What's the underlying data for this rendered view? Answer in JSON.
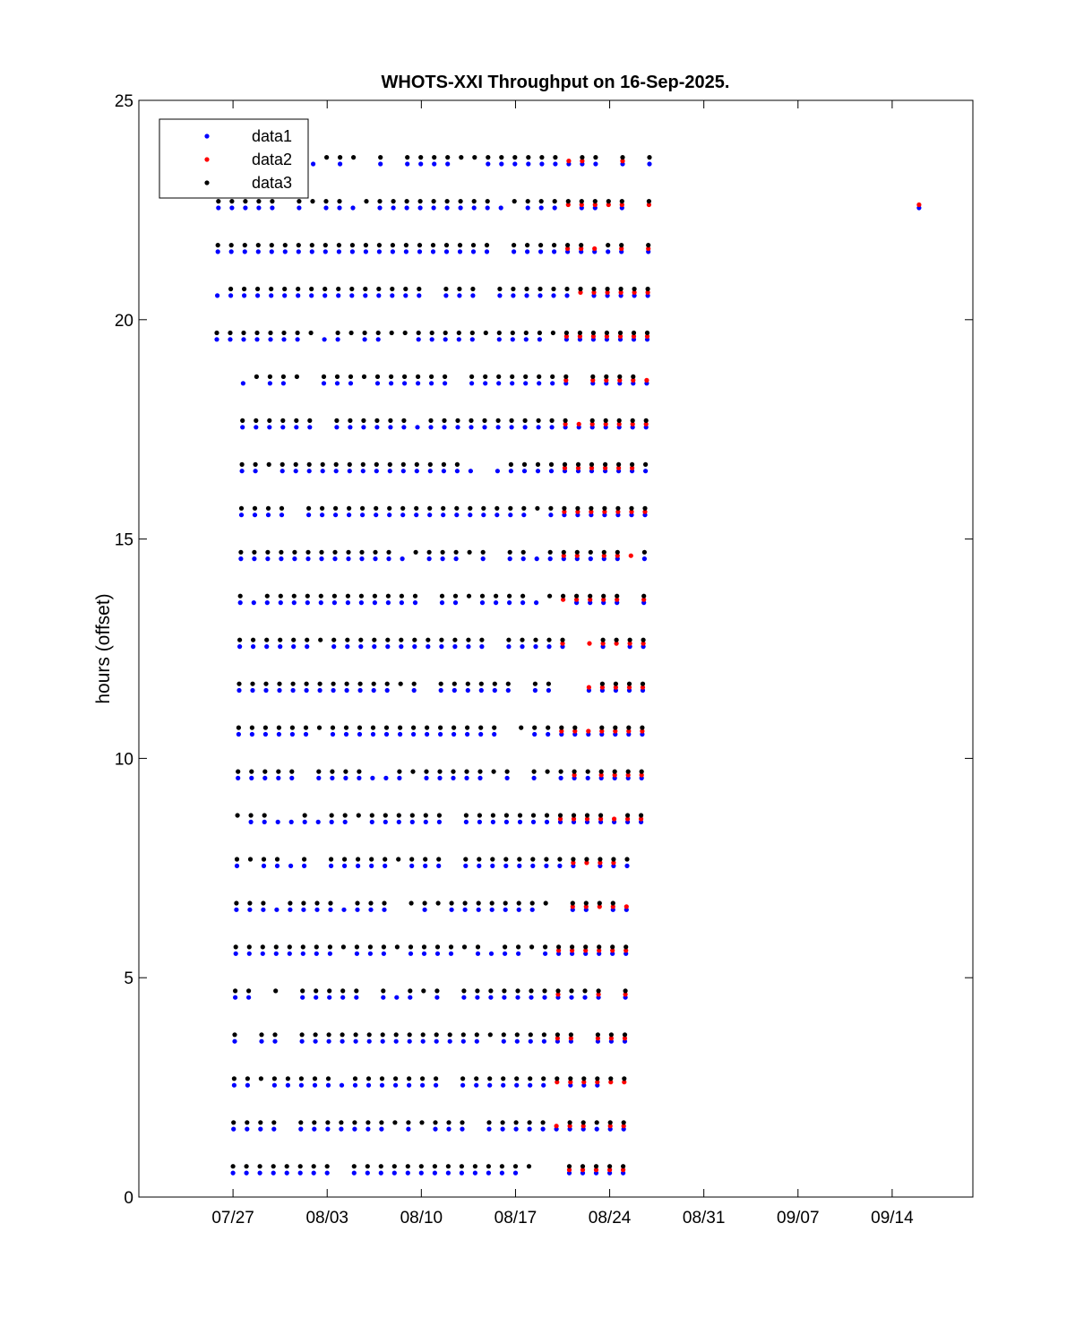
{
  "chart_data": {
    "type": "scatter",
    "title": "WHOTS-XXI Throughput on 16-Sep-2025.",
    "xlabel": "",
    "ylabel": "hours (offset)",
    "xlim": [
      "2025-07-20",
      "2025-09-20"
    ],
    "ylim": [
      0,
      25
    ],
    "x_ticks": [
      "07/27",
      "08/03",
      "08/10",
      "08/17",
      "08/24",
      "08/31",
      "09/07",
      "09/14"
    ],
    "x_tick_dates": [
      "2025-07-27",
      "2025-08-03",
      "2025-08-10",
      "2025-08-17",
      "2025-08-24",
      "2025-08-31",
      "2025-09-07",
      "2025-09-14"
    ],
    "y_ticks": [
      0,
      5,
      10,
      15,
      20,
      25
    ],
    "legend_position": "top-left",
    "grid": false,
    "data_start": "2025-07-25",
    "data_end_main": "2025-08-26",
    "series": [
      {
        "name": "data1",
        "color": "#0000ff",
        "marker": "dot",
        "hour_offset": 0.55
      },
      {
        "name": "data2",
        "color": "#ff0000",
        "marker": "dot",
        "hour_offset": 0.62
      },
      {
        "name": "data3",
        "color": "#000000",
        "marker": "dot",
        "hour_offset": 0.7
      }
    ],
    "outlier_points": [
      {
        "series": "data1",
        "date": "2025-09-16",
        "y": 22.55
      },
      {
        "series": "data2",
        "date": "2025-09-16",
        "y": 22.62
      }
    ]
  }
}
